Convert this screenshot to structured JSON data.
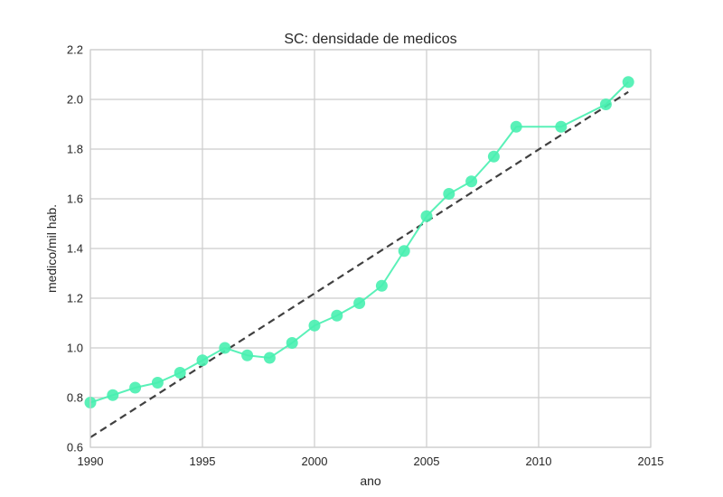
{
  "chart_data": {
    "type": "line",
    "title": "SC: densidade de medicos",
    "xlabel": "ano",
    "ylabel": "medico/mil hab.",
    "xlim": [
      1990,
      2015
    ],
    "ylim": [
      0.6,
      2.2
    ],
    "x_ticks": [
      1990,
      1995,
      2000,
      2005,
      2010,
      2015
    ],
    "y_ticks": [
      0.6,
      0.8,
      1.0,
      1.2,
      1.4,
      1.6,
      1.8,
      2.0,
      2.2
    ],
    "x_tick_labels": [
      "1990",
      "1995",
      "2000",
      "2005",
      "2010",
      "2015"
    ],
    "y_tick_labels": [
      "0.6",
      "0.8",
      "1.0",
      "1.2",
      "1.4",
      "1.6",
      "1.8",
      "2.0",
      "2.2"
    ],
    "grid": true,
    "series": [
      {
        "kind": "line-markers",
        "color": "#48f0b0",
        "x": [
          1990,
          1991,
          1992,
          1993,
          1994,
          1995,
          1996,
          1997,
          1998,
          1999,
          2000,
          2001,
          2002,
          2003,
          2004,
          2005,
          2006,
          2007,
          2008,
          2009,
          2011,
          2013,
          2014
        ],
        "y": [
          0.78,
          0.81,
          0.84,
          0.86,
          0.9,
          0.95,
          1.0,
          0.97,
          0.96,
          1.02,
          1.09,
          1.13,
          1.18,
          1.25,
          1.39,
          1.53,
          1.62,
          1.67,
          1.77,
          1.89,
          1.89,
          1.98,
          2.07
        ]
      },
      {
        "kind": "trend-dashed",
        "color": "#404040",
        "x": [
          1990,
          2014
        ],
        "y": [
          0.64,
          2.03
        ]
      }
    ]
  }
}
